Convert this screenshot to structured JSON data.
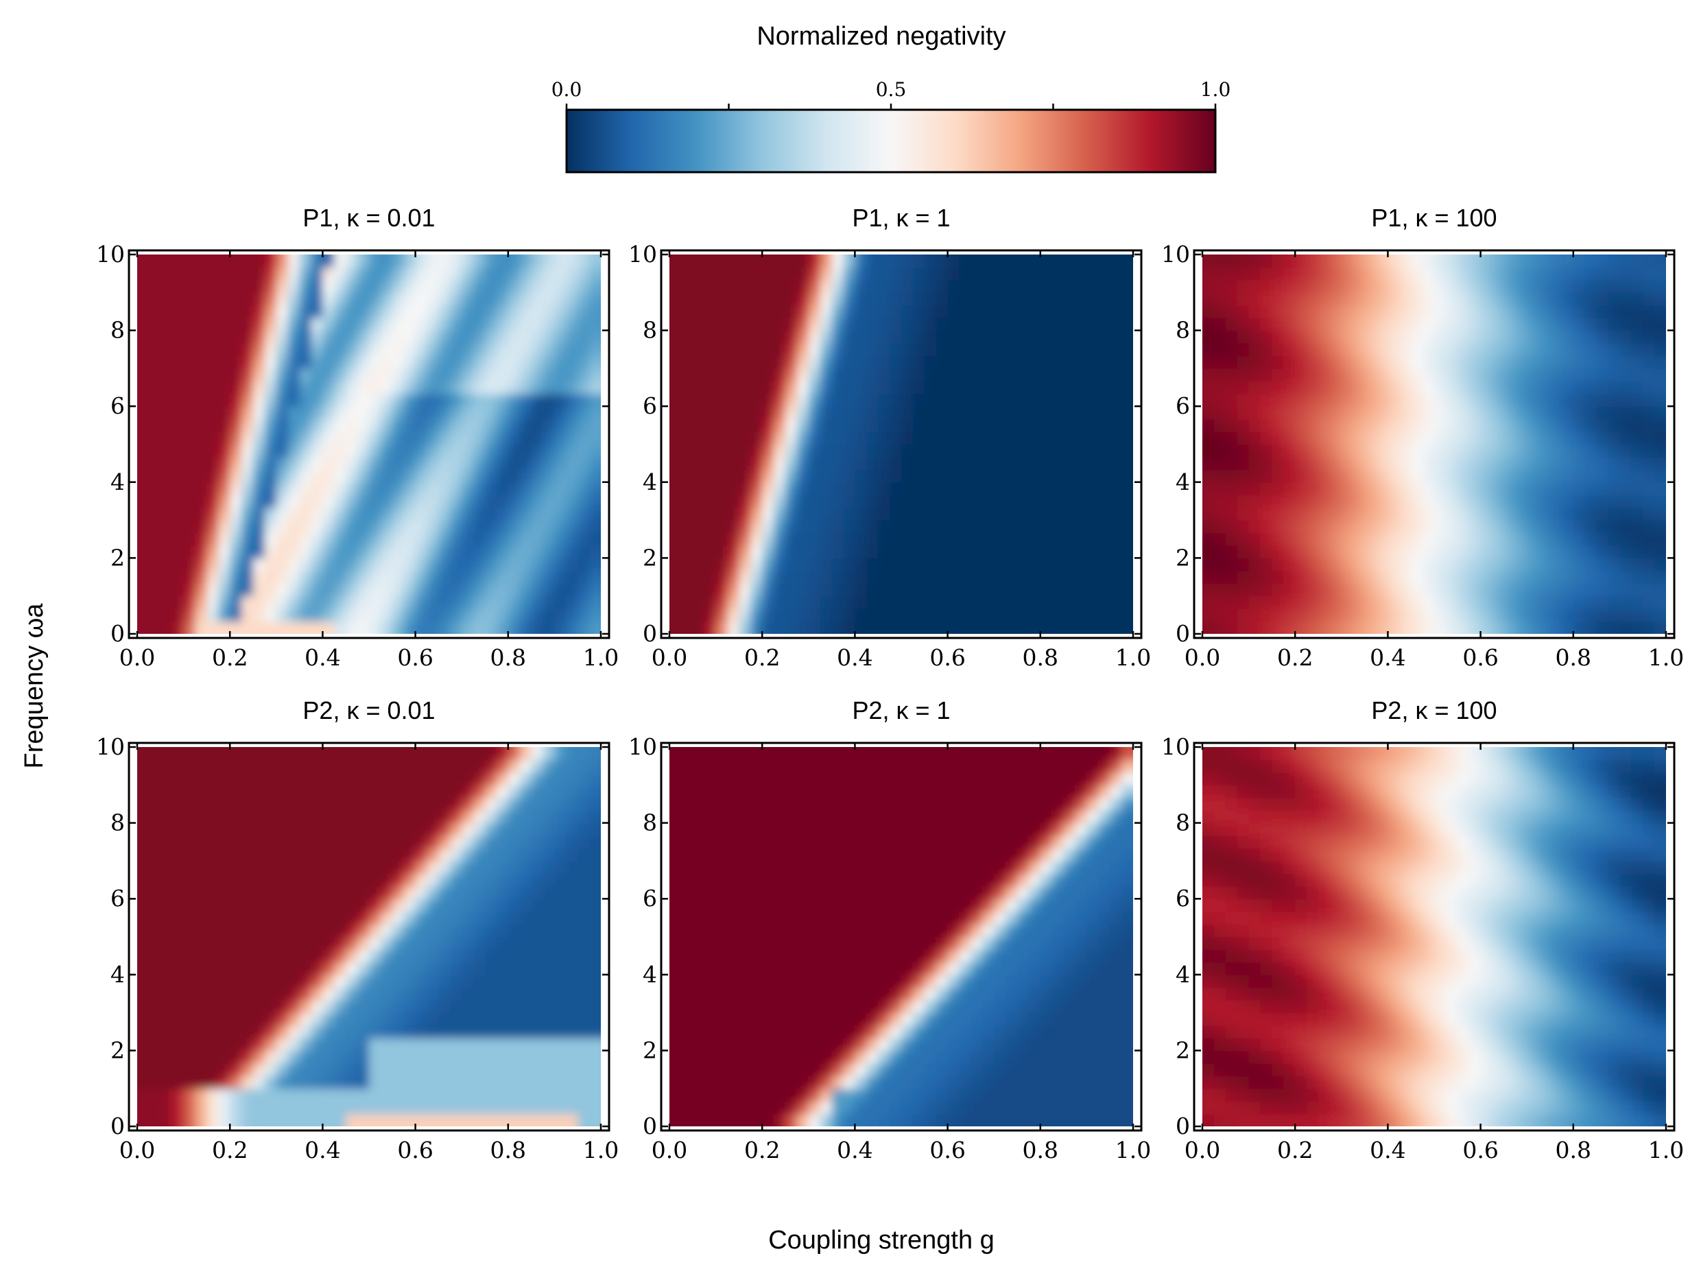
{
  "figure": {
    "colorbar_title": "Normalized negativity",
    "xlabel": "Coupling strength g",
    "ylabel": "Frequency ωa"
  },
  "colorbar": {
    "ticks": [
      "0.0",
      "0.5",
      "1.0"
    ],
    "range": [
      0.0,
      1.0
    ],
    "colormap": "RdBu_r",
    "colors": [
      "#053061",
      "#2166ac",
      "#4393c3",
      "#92c5de",
      "#d1e5f0",
      "#f7f7f7",
      "#fddbc7",
      "#f4a582",
      "#d6604d",
      "#b2182b",
      "#67001f"
    ]
  },
  "chart_data": [
    {
      "type": "heatmap",
      "title": "P1, κ = 0.01",
      "protocol": "P1",
      "kappa": 0.01,
      "xlim": [
        0,
        1
      ],
      "ylim": [
        0,
        10
      ],
      "xticks": [
        "0.0",
        "0.2",
        "0.4",
        "0.6",
        "0.8",
        "1.0"
      ],
      "yticks": [
        "0",
        "2",
        "4",
        "6",
        "8",
        "10"
      ]
    },
    {
      "type": "heatmap",
      "title": "P1, κ = 1",
      "protocol": "P1",
      "kappa": 1,
      "xlim": [
        0,
        1
      ],
      "ylim": [
        0,
        10
      ],
      "xticks": [
        "0.0",
        "0.2",
        "0.4",
        "0.6",
        "0.8",
        "1.0"
      ],
      "yticks": [
        "0",
        "2",
        "4",
        "6",
        "8",
        "10"
      ]
    },
    {
      "type": "heatmap",
      "title": "P1, κ = 100",
      "protocol": "P1",
      "kappa": 100,
      "xlim": [
        0,
        1
      ],
      "ylim": [
        0,
        10
      ],
      "xticks": [
        "0.0",
        "0.2",
        "0.4",
        "0.6",
        "0.8",
        "1.0"
      ],
      "yticks": [
        "0",
        "2",
        "4",
        "6",
        "8",
        "10"
      ]
    },
    {
      "type": "heatmap",
      "title": "P2, κ = 0.01",
      "protocol": "P2",
      "kappa": 0.01,
      "xlim": [
        0,
        1
      ],
      "ylim": [
        0,
        10
      ],
      "xticks": [
        "0.0",
        "0.2",
        "0.4",
        "0.6",
        "0.8",
        "1.0"
      ],
      "yticks": [
        "0",
        "2",
        "4",
        "6",
        "8",
        "10"
      ]
    },
    {
      "type": "heatmap",
      "title": "P2, κ = 1",
      "protocol": "P2",
      "kappa": 1,
      "xlim": [
        0,
        1
      ],
      "ylim": [
        0,
        10
      ],
      "xticks": [
        "0.0",
        "0.2",
        "0.4",
        "0.6",
        "0.8",
        "1.0"
      ],
      "yticks": [
        "0",
        "2",
        "4",
        "6",
        "8",
        "10"
      ]
    },
    {
      "type": "heatmap",
      "title": "P2, κ = 100",
      "protocol": "P2",
      "kappa": 100,
      "xlim": [
        0,
        1
      ],
      "ylim": [
        0,
        10
      ],
      "xticks": [
        "0.0",
        "0.2",
        "0.4",
        "0.6",
        "0.8",
        "1.0"
      ],
      "yticks": [
        "0",
        "2",
        "4",
        "6",
        "8",
        "10"
      ]
    }
  ]
}
